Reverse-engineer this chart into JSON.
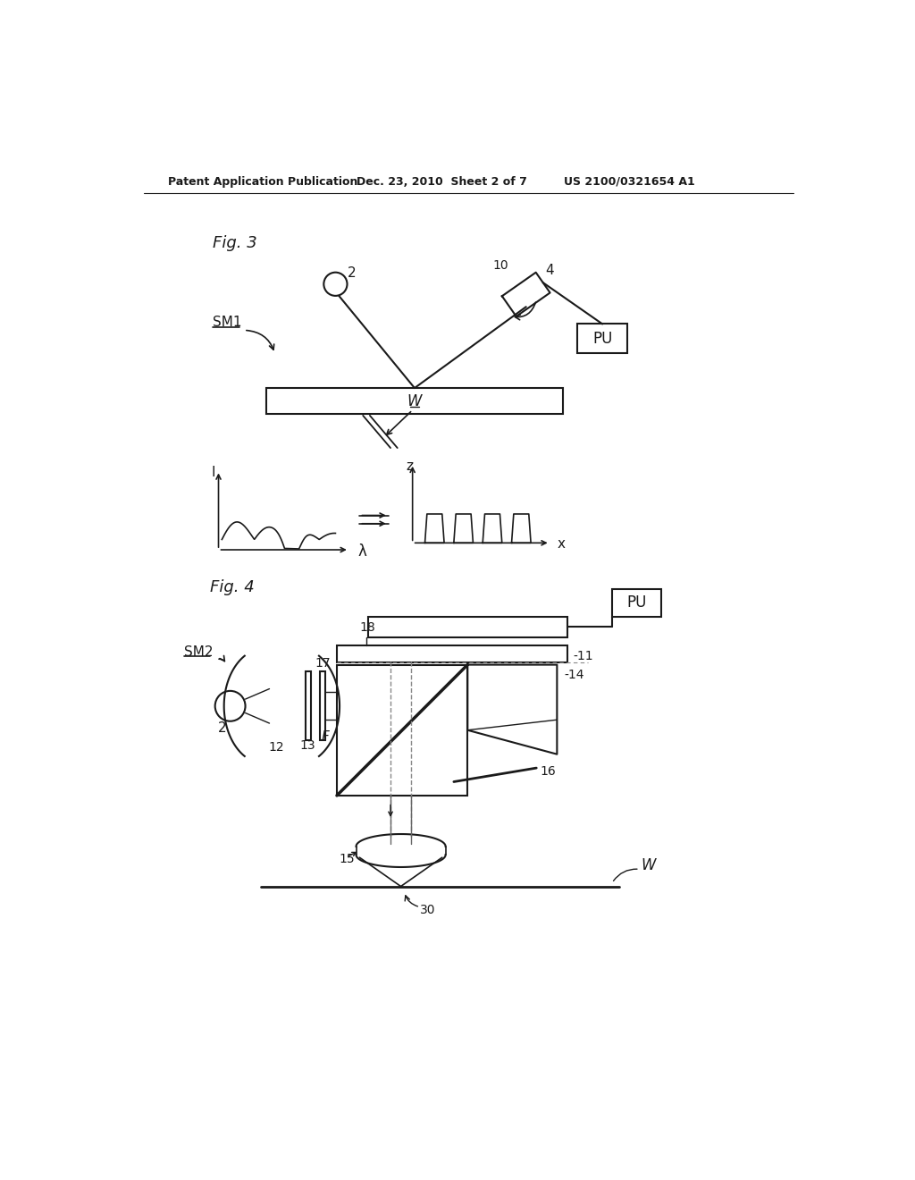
{
  "bg_color": "#ffffff",
  "header_text1": "Patent Application Publication",
  "header_text2": "Dec. 23, 2010  Sheet 2 of 7",
  "header_text3": "US 2100/0321654 A1",
  "fig3_label": "Fig. 3",
  "fig4_label": "Fig. 4"
}
